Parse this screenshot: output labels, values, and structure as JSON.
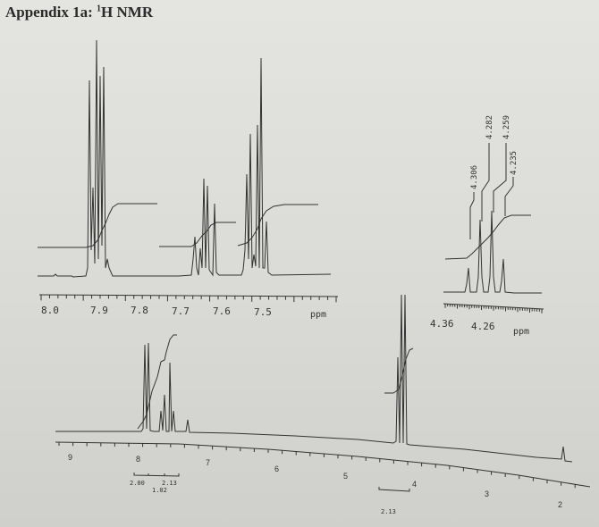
{
  "title": {
    "prefix": "Appendix 1a: ",
    "superscript": "1",
    "suffix": "H NMR"
  },
  "expansion_aromatic": {
    "ticks": [
      "8.0",
      "7.9",
      "7.8",
      "7.7",
      "7.6",
      "7.5"
    ],
    "unit": "ppm"
  },
  "expansion_quartet": {
    "peak_labels": [
      "4.306",
      "4.282",
      "4.259",
      "4.235"
    ],
    "ticks": [
      "4.36",
      "4.26"
    ],
    "unit": "ppm"
  },
  "full_spectrum": {
    "ticks": [
      "9",
      "8",
      "7",
      "6",
      "5",
      "4",
      "3",
      "2"
    ],
    "integrals_aromatic": [
      "2.00",
      "2.13",
      "1.02"
    ],
    "integral_ch2": "2.13"
  },
  "colors": {
    "ink": "#333333",
    "paper": "#e0e0dd"
  }
}
